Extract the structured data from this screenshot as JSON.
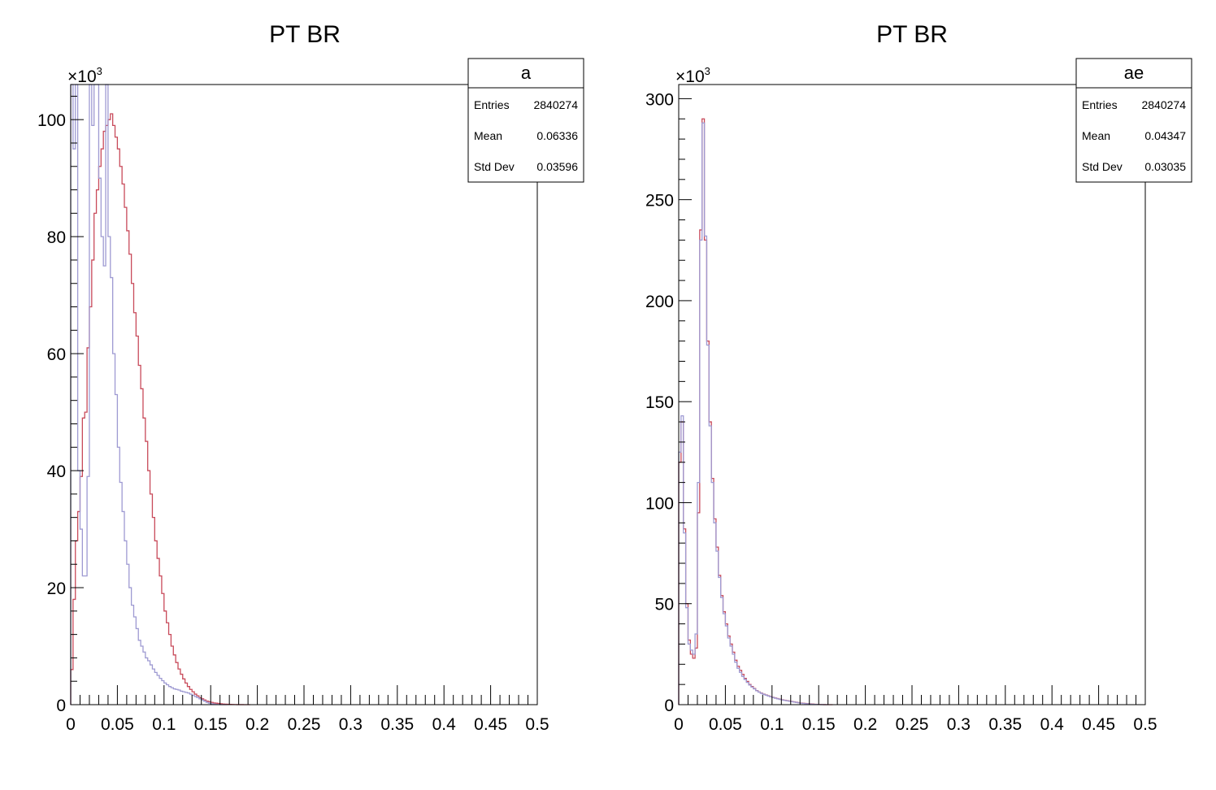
{
  "colors": {
    "red": "#c84a5a",
    "blue": "#9e9ad2",
    "axis": "#000000"
  },
  "chart_data": [
    {
      "type": "area",
      "title": "PT BR",
      "xlabel": "",
      "ylabel": "",
      "xlim": [
        0,
        0.5
      ],
      "ylim": [
        0,
        106
      ],
      "y_multiplier": "×10",
      "y_exponent": "3",
      "x_ticks": [
        0,
        0.05,
        0.1,
        0.15,
        0.2,
        0.25,
        0.3,
        0.35,
        0.4,
        0.45,
        0.5
      ],
      "x_tick_labels": [
        "0",
        "0.05",
        "0.1",
        "0.15",
        "0.2",
        "0.25",
        "0.3",
        "0.35",
        "0.4",
        "0.45",
        "0.5"
      ],
      "y_ticks": [
        0,
        20,
        40,
        60,
        80,
        100
      ],
      "y_tick_labels": [
        "0",
        "20",
        "40",
        "60",
        "80",
        "100"
      ],
      "grid": false,
      "stats_box": {
        "name": "a",
        "rows": [
          {
            "label": "Entries",
            "value": "2840274"
          },
          {
            "label": "Mean",
            "value": "0.06336"
          },
          {
            "label": "Std Dev",
            "value": "0.03596"
          }
        ]
      },
      "bin_width": 0.0025,
      "series": [
        {
          "color_key": "red",
          "values": [
            6,
            18,
            28,
            33,
            39,
            49,
            50,
            61,
            68,
            76,
            84,
            88,
            92,
            95,
            98,
            99,
            100,
            101,
            99,
            97,
            95,
            92,
            89,
            85,
            81,
            77,
            72,
            67,
            63,
            58,
            54,
            49,
            45,
            40,
            36,
            32,
            28,
            25,
            22,
            19,
            16,
            14,
            12,
            10,
            8.5,
            7.2,
            6.1,
            5.2,
            4.4,
            3.7,
            3.1,
            2.6,
            2.2,
            1.8,
            1.5,
            1.2,
            1.0,
            0.8,
            0.6,
            0.5,
            0.4,
            0.3,
            0.25,
            0.2,
            0.15,
            0.1,
            0.08,
            0.06,
            0.04,
            0.03,
            0.02,
            0.01,
            0.01,
            0.01,
            0.0,
            0.0,
            0.0
          ]
        },
        {
          "color_key": "blue",
          "values": [
            106,
            95,
            106,
            40,
            30,
            22,
            22,
            39,
            106,
            99,
            106,
            106,
            90,
            80,
            75,
            106,
            80,
            73,
            60,
            53,
            44,
            38,
            33,
            28,
            24,
            20,
            17,
            15,
            13,
            11,
            10,
            9,
            8,
            7.5,
            6.8,
            6.1,
            5.5,
            5.0,
            4.5,
            4.1,
            3.7,
            3.4,
            3.1,
            2.9,
            2.7,
            2.6,
            2.5,
            2.3,
            2.2,
            2.1,
            2.0,
            1.8,
            1.6,
            1.4,
            1.2,
            1.0,
            0.8,
            0.6,
            0.4,
            0.25,
            0.15,
            0.1,
            0.05,
            0.02,
            0.01,
            0.0,
            0.0
          ]
        }
      ]
    },
    {
      "type": "area",
      "title": "PT BR",
      "xlabel": "",
      "ylabel": "",
      "xlim": [
        0,
        0.5
      ],
      "ylim": [
        0,
        307
      ],
      "y_multiplier": "×10",
      "y_exponent": "3",
      "x_ticks": [
        0,
        0.05,
        0.1,
        0.15,
        0.2,
        0.25,
        0.3,
        0.35,
        0.4,
        0.45,
        0.5
      ],
      "x_tick_labels": [
        "0",
        "0.05",
        "0.1",
        "0.15",
        "0.2",
        "0.25",
        "0.3",
        "0.35",
        "0.4",
        "0.45",
        "0.5"
      ],
      "y_ticks": [
        0,
        50,
        100,
        150,
        200,
        250,
        300
      ],
      "y_tick_labels": [
        "0",
        "50",
        "100",
        "150",
        "200",
        "250",
        "300"
      ],
      "grid": false,
      "stats_box": {
        "name": "ae",
        "rows": [
          {
            "label": "Entries",
            "value": "2840274"
          },
          {
            "label": "Mean",
            "value": "0.04347"
          },
          {
            "label": "Std Dev",
            "value": "0.03035"
          }
        ]
      },
      "bin_width": 0.0025,
      "series": [
        {
          "color_key": "red",
          "values": [
            120,
            140,
            87,
            50,
            32,
            25,
            23,
            28,
            95,
            235,
            290,
            230,
            180,
            140,
            112,
            92,
            78,
            64,
            54,
            46,
            40,
            34,
            30,
            26,
            22,
            19,
            17,
            15,
            13,
            11.5,
            10,
            9,
            8,
            7,
            6.3,
            5.7,
            5.2,
            4.8,
            4.4,
            4.0,
            3.6,
            3.3,
            3.0,
            2.7,
            2.4,
            2.2,
            2.0,
            1.8,
            1.6,
            1.4,
            1.2,
            1.0,
            0.8,
            0.7,
            0.6,
            0.5,
            0.4,
            0.3,
            0.2,
            0.15,
            0.1,
            0.05,
            0.02,
            0.01,
            0.0,
            0.0
          ]
        },
        {
          "color_key": "blue",
          "values": [
            125,
            143,
            85,
            48,
            30,
            27,
            25,
            35,
            110,
            230,
            288,
            232,
            178,
            138,
            110,
            90,
            76,
            63,
            53,
            45,
            39,
            33,
            29,
            25,
            21,
            18,
            16,
            14,
            12.5,
            11,
            9.7,
            8.7,
            7.8,
            6.9,
            6.2,
            5.6,
            5.1,
            4.7,
            4.3,
            3.9,
            3.5,
            3.2,
            2.9,
            2.6,
            2.3,
            2.1,
            1.9,
            1.7,
            1.5,
            1.3,
            1.1,
            0.9,
            0.7,
            0.6,
            0.5,
            0.4,
            0.3,
            0.2,
            0.15,
            0.1,
            0.05,
            0.02,
            0.01,
            0.0
          ]
        }
      ]
    }
  ]
}
